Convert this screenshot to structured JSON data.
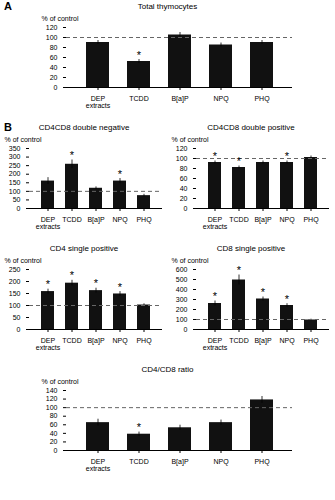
{
  "chart_data": [
    {
      "type": "bar",
      "title": "Total thymocytes",
      "categories": [
        "DEP\nextracts",
        "TCDD",
        "B[a]P",
        "NPQ",
        "PHQ"
      ],
      "values": [
        90,
        52,
        105,
        85,
        90
      ],
      "errors": [
        4,
        4,
        5,
        4,
        4
      ],
      "color": "#111111",
      "ylabel": "% of control",
      "ylim": [
        0,
        120
      ],
      "yticks": [
        0,
        20,
        40,
        60,
        80,
        100,
        120
      ],
      "reference_line": {
        "y": 100,
        "color": "#666666",
        "line_style": "dashed"
      },
      "annotations": [
        {
          "text": "A"
        },
        {
          "text": "*",
          "category": "TCDD"
        }
      ]
    },
    {
      "type": "bar",
      "title": "CD4CD8 double negative",
      "categories": [
        "DEP\nextracts",
        "TCDD",
        "B[a]P",
        "NPQ",
        "PHQ"
      ],
      "values": [
        160,
        258,
        118,
        160,
        75
      ],
      "errors": [
        20,
        25,
        8,
        15,
        8
      ],
      "color": "#111111",
      "ylabel": "% of control",
      "ylim": [
        0,
        350
      ],
      "yticks": [
        0,
        50,
        100,
        150,
        200,
        250,
        300,
        350
      ],
      "reference_line": {
        "y": 100,
        "color": "#666666",
        "line_style": "dashed"
      },
      "annotations": [
        {
          "text": "B"
        },
        {
          "text": "*",
          "category": "TCDD"
        },
        {
          "text": "*",
          "category": "NPQ"
        }
      ]
    },
    {
      "type": "bar",
      "title": "CD4CD8 double positive",
      "categories": [
        "DEP\nextracts",
        "TCDD",
        "B[a]P",
        "NPQ",
        "PHQ"
      ],
      "values": [
        92,
        82,
        92,
        92,
        102
      ],
      "errors": [
        3,
        3,
        3,
        3,
        3
      ],
      "color": "#111111",
      "ylabel": "% of control",
      "ylim": [
        0,
        120
      ],
      "yticks": [
        0,
        20,
        40,
        60,
        80,
        100,
        120
      ],
      "reference_line": {
        "y": 100,
        "color": "#666666",
        "line_style": "dashed"
      },
      "annotations": [
        {
          "text": "*",
          "category": "DEP\nextracts"
        },
        {
          "text": "*",
          "category": "TCDD"
        },
        {
          "text": "*",
          "category": "NPQ"
        }
      ]
    },
    {
      "type": "bar",
      "title": "CD4 single positive",
      "categories": [
        "DEP\nextracts",
        "TCDD",
        "B[a]P",
        "NPQ",
        "PHQ"
      ],
      "values": [
        158,
        193,
        162,
        148,
        102
      ],
      "errors": [
        10,
        12,
        10,
        10,
        5
      ],
      "color": "#111111",
      "ylabel": "% of control",
      "ylim": [
        0,
        250
      ],
      "yticks": [
        0,
        50,
        100,
        150,
        200,
        250
      ],
      "reference_line": {
        "y": 100,
        "color": "#666666",
        "line_style": "dashed"
      },
      "annotations": [
        {
          "text": "*",
          "category": "DEP\nextracts"
        },
        {
          "text": "*",
          "category": "TCDD"
        },
        {
          "text": "*",
          "category": "B[a]P"
        },
        {
          "text": "*",
          "category": "NPQ"
        }
      ]
    },
    {
      "type": "bar",
      "title": "CD8 single positive",
      "categories": [
        "DEP\nextracts",
        "TCDD",
        "B[a]P",
        "NPQ",
        "PHQ"
      ],
      "values": [
        260,
        495,
        305,
        240,
        95
      ],
      "errors": [
        25,
        50,
        20,
        18,
        8
      ],
      "color": "#111111",
      "ylabel": "% of control",
      "ylim": [
        0,
        600
      ],
      "yticks": [
        0,
        100,
        200,
        300,
        400,
        500,
        600
      ],
      "reference_line": {
        "y": 100,
        "color": "#666666",
        "line_style": "dashed"
      },
      "annotations": [
        {
          "text": "*",
          "category": "DEP\nextracts"
        },
        {
          "text": "*",
          "category": "TCDD"
        },
        {
          "text": "*",
          "category": "B[a]P"
        },
        {
          "text": "*",
          "category": "NPQ"
        }
      ]
    },
    {
      "type": "bar",
      "title": "CD4/CD8 ratio",
      "categories": [
        "DEP\nextracts",
        "TCDD",
        "B[a]P",
        "NPQ",
        "PHQ"
      ],
      "values": [
        65,
        38,
        53,
        65,
        118
      ],
      "errors": [
        8,
        5,
        6,
        6,
        8
      ],
      "color": "#111111",
      "ylabel": "% of control",
      "ylim": [
        0,
        140
      ],
      "yticks": [
        0,
        20,
        40,
        60,
        80,
        100,
        120,
        140
      ],
      "reference_line": {
        "y": 100,
        "color": "#666666",
        "line_style": "dashed"
      },
      "annotations": [
        {
          "text": "*",
          "category": "TCDD"
        }
      ]
    }
  ]
}
